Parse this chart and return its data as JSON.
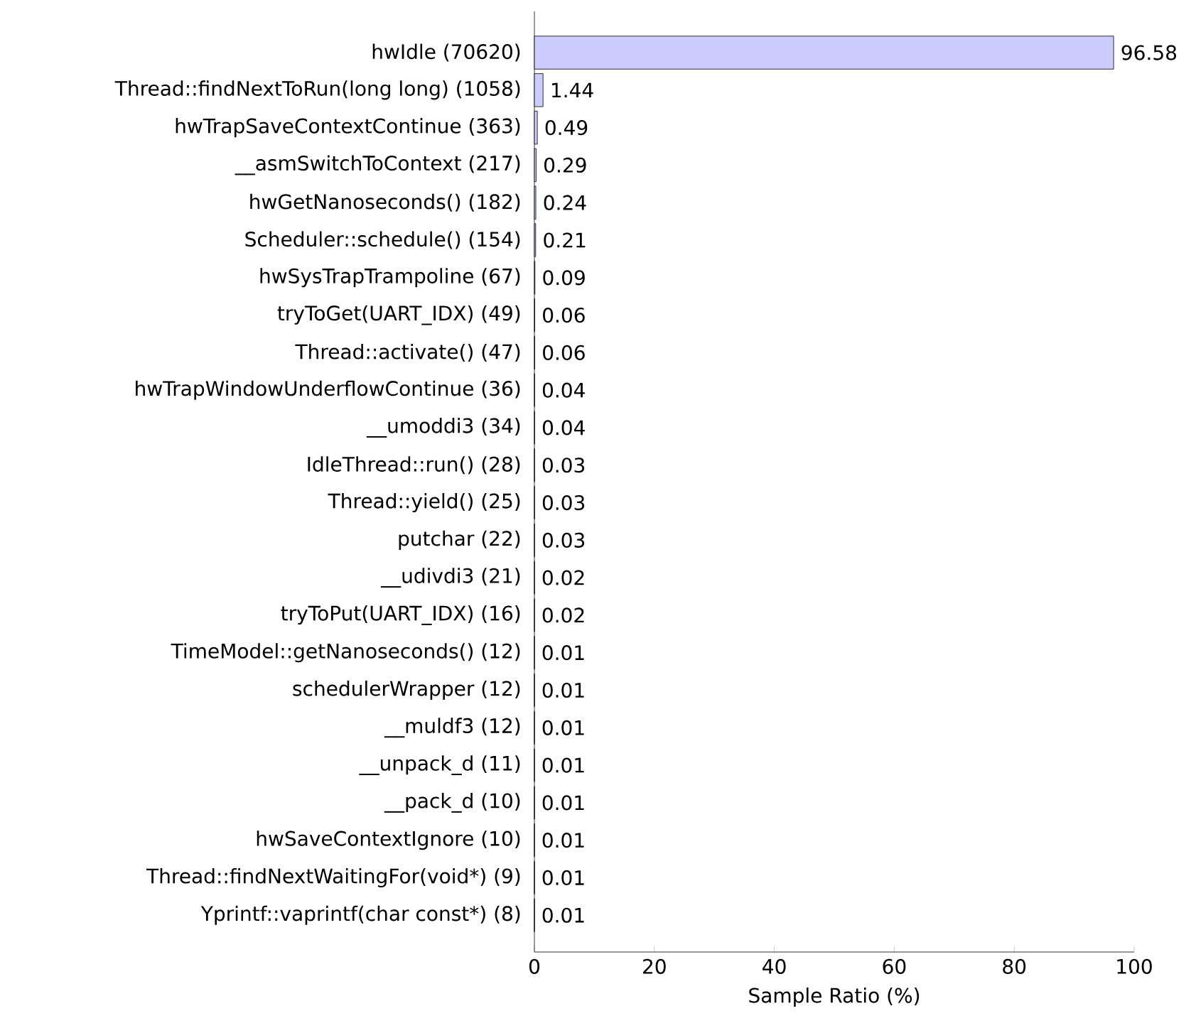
{
  "chart_data": {
    "type": "bar",
    "orientation": "horizontal",
    "xlabel": "Sample Ratio (%)",
    "categories": [
      "hwIdle (70620)",
      "Thread::findNextToRun(long long) (1058)",
      "hwTrapSaveContextContinue (363)",
      "__asmSwitchToContext (217)",
      "hwGetNanoseconds() (182)",
      "Scheduler::schedule() (154)",
      "hwSysTrapTrampoline (67)",
      "tryToGet(UART_IDX) (49)",
      "Thread::activate() (47)",
      "hwTrapWindowUnderflowContinue (36)",
      "__umoddi3 (34)",
      "IdleThread::run() (28)",
      "Thread::yield() (25)",
      "putchar (22)",
      "__udivdi3 (21)",
      "tryToPut(UART_IDX) (16)",
      "TimeModel::getNanoseconds() (12)",
      "schedulerWrapper (12)",
      "__muldf3 (12)",
      "__unpack_d (11)",
      "__pack_d (10)",
      "hwSaveContextIgnore (10)",
      "Thread::findNextWaitingFor(void*) (9)",
      "Yprintf::vaprintf(char const*) (8)"
    ],
    "values": [
      96.58,
      1.44,
      0.49,
      0.29,
      0.24,
      0.21,
      0.09,
      0.06,
      0.06,
      0.04,
      0.04,
      0.03,
      0.03,
      0.03,
      0.02,
      0.02,
      0.01,
      0.01,
      0.01,
      0.01,
      0.01,
      0.01,
      0.01,
      0.01
    ],
    "color": "#ccccff",
    "data_labels": true,
    "grid": false,
    "xlim": [
      0,
      100
    ],
    "xticks": [
      0,
      20,
      40,
      60,
      80,
      100
    ]
  }
}
